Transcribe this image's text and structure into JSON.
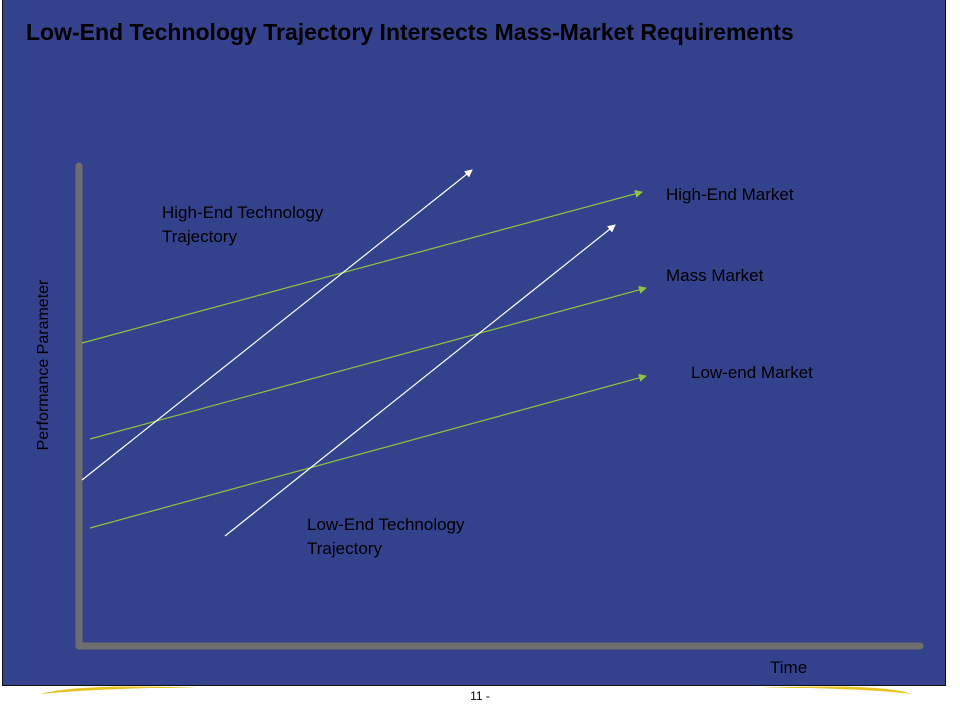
{
  "slide": {
    "title": "Low-End Technology Trajectory Intersects Mass-Market Requirements",
    "page_number": "11 -"
  },
  "axes": {
    "x_label": "Time",
    "y_label": "Performance Parameter"
  },
  "labels": {
    "high_end_technology": [
      "High-End Technology",
      "Trajectory"
    ],
    "low_end_technology": [
      "Low-End Technology",
      "Trajectory"
    ],
    "high_end_market": "High-End Market",
    "mass_market": "Mass Market",
    "low_end_market": "Low-end Market"
  },
  "colors": {
    "background": "#34418d",
    "axis": "#6e6e6e",
    "market_line": "#8cc63f",
    "technology_line": "#ffffff",
    "footer_swoosh": "#e8c21e",
    "text": "#000000"
  }
}
